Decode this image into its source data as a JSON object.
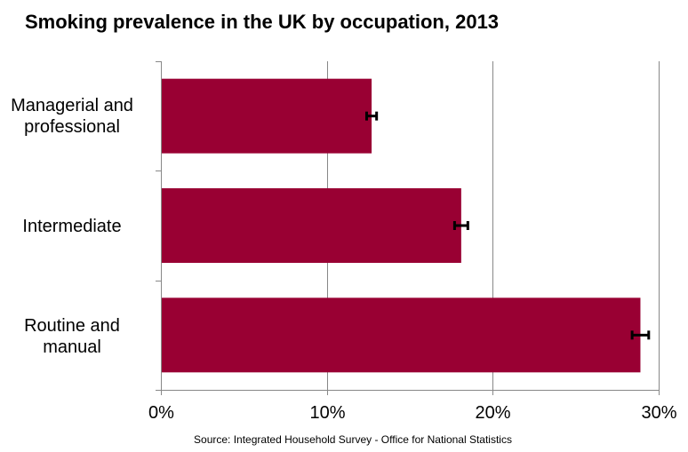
{
  "chart_data": {
    "type": "bar",
    "orientation": "horizontal",
    "title": "Smoking prevalence in the UK by occupation, 2013",
    "categories": [
      [
        "Managerial and",
        "professional"
      ],
      [
        "Intermediate"
      ],
      [
        "Routine and",
        "manual"
      ]
    ],
    "values": [
      12.7,
      18.1,
      28.9
    ],
    "error_bars": [
      [
        12.4,
        13.0
      ],
      [
        17.7,
        18.5
      ],
      [
        28.4,
        29.4
      ]
    ],
    "xlim": [
      0,
      30
    ],
    "x_ticks": [
      "0%",
      "10%",
      "20%",
      "30%"
    ],
    "grid": true,
    "bar_color": "#990033",
    "source": "Source: Integrated Household Survey - Office for National Statistics"
  }
}
